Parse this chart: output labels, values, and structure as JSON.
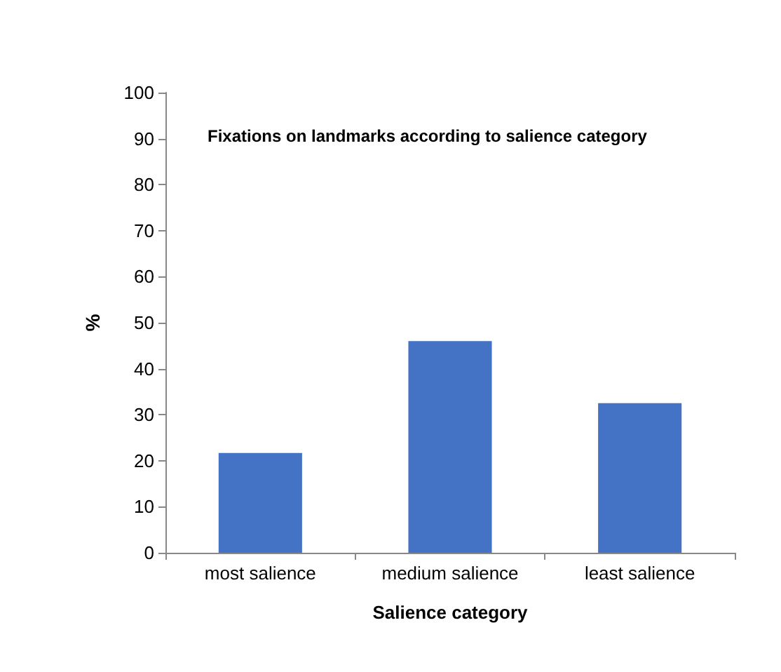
{
  "chart_data": {
    "type": "bar",
    "title": "Fixations on landmarks according to salience category",
    "xlabel": "Salience category",
    "ylabel": "%",
    "categories": [
      "most salience",
      "medium salience",
      "least salience"
    ],
    "values": [
      21.7,
      46,
      32.5
    ],
    "color": "#4472c4",
    "ylim": [
      0,
      100
    ],
    "yticks": [
      0,
      10,
      20,
      30,
      40,
      50,
      60,
      70,
      80,
      90,
      100
    ],
    "grid": false
  }
}
